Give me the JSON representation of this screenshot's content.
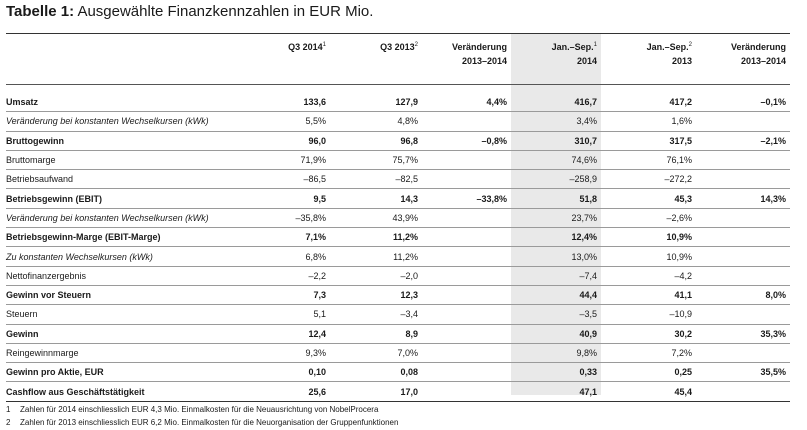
{
  "title": {
    "bold": "Tabelle 1:",
    "rest": "Ausgewählte Finanzkennzahlen in EUR Mio."
  },
  "headers": [
    {
      "line1": "",
      "line2": "",
      "sup": ""
    },
    {
      "line1": "Q3 2014",
      "line2": "",
      "sup": "1"
    },
    {
      "line1": "Q3 2013",
      "line2": "",
      "sup": "2"
    },
    {
      "line1": "Veränderung",
      "line2": "2013–2014",
      "sup": ""
    },
    {
      "line1": "Jan.–Sep.",
      "line2": "2014",
      "sup": "1"
    },
    {
      "line1": "Jan.–Sep.",
      "line2": "2013",
      "sup": "2"
    },
    {
      "line1": "Veränderung",
      "line2": "2013–2014",
      "sup": ""
    }
  ],
  "rows": [
    {
      "style": "bold",
      "cells": [
        "Umsatz",
        "133,6",
        "127,9",
        "4,4%",
        "416,7",
        "417,2",
        "–0,1%"
      ]
    },
    {
      "style": "italic",
      "cells": [
        "Veränderung bei konstanten Wechselkursen (kWk)",
        "5,5%",
        "4,8%",
        "",
        "3,4%",
        "1,6%",
        ""
      ]
    },
    {
      "style": "bold",
      "cells": [
        "Bruttogewinn",
        "96,0",
        "96,8",
        "–0,8%",
        "310,7",
        "317,5",
        "–2,1%"
      ]
    },
    {
      "style": "normal",
      "cells": [
        "Bruttomarge",
        "71,9%",
        "75,7%",
        "",
        "74,6%",
        "76,1%",
        ""
      ]
    },
    {
      "style": "normal",
      "cells": [
        "Betriebsaufwand",
        "–86,5",
        "–82,5",
        "",
        "–258,9",
        "–272,2",
        ""
      ]
    },
    {
      "style": "bold",
      "cells": [
        "Betriebsgewinn (EBIT)",
        "9,5",
        "14,3",
        "–33,8%",
        "51,8",
        "45,3",
        "14,3%"
      ]
    },
    {
      "style": "italic",
      "cells": [
        "Veränderung bei konstanten Wechselkursen (kWk)",
        "–35,8%",
        "43,9%",
        "",
        "23,7%",
        "–2,6%",
        ""
      ]
    },
    {
      "style": "bold",
      "cells": [
        "Betriebsgewinn-Marge (EBIT-Marge)",
        "7,1%",
        "11,2%",
        "",
        "12,4%",
        "10,9%",
        ""
      ]
    },
    {
      "style": "italic",
      "cells": [
        "Zu konstanten Wechselkursen (kWk)",
        "6,8%",
        "11,2%",
        "",
        "13,0%",
        "10,9%",
        ""
      ]
    },
    {
      "style": "normal",
      "cells": [
        "Nettofinanzergebnis",
        "–2,2",
        "–2,0",
        "",
        "–7,4",
        "–4,2",
        ""
      ]
    },
    {
      "style": "bold",
      "cells": [
        "Gewinn vor Steuern",
        "7,3",
        "12,3",
        "",
        "44,4",
        "41,1",
        "8,0%"
      ]
    },
    {
      "style": "normal",
      "cells": [
        "Steuern",
        "5,1",
        "–3,4",
        "",
        "–3,5",
        "–10,9",
        ""
      ]
    },
    {
      "style": "bold",
      "cells": [
        "Gewinn",
        "12,4",
        "8,9",
        "",
        "40,9",
        "30,2",
        "35,3%"
      ]
    },
    {
      "style": "normal",
      "cells": [
        "Reingewinnmarge",
        "9,3%",
        "7,0%",
        "",
        "9,8%",
        "7,2%",
        ""
      ]
    },
    {
      "style": "bold",
      "cells": [
        "Gewinn pro Aktie, EUR",
        "0,10",
        "0,08",
        "",
        "0,33",
        "0,25",
        "35,5%"
      ]
    },
    {
      "style": "bold",
      "cells": [
        "Cashflow aus Geschäftstätigkeit",
        "25,6",
        "17,0",
        "",
        "47,1",
        "45,4",
        ""
      ]
    }
  ],
  "footnotes": [
    {
      "num": "1",
      "text": "Zahlen für 2014 einschliesslich EUR 4,3 Mio. Einmalkosten für die Neuausrichtung von NobelProcera"
    },
    {
      "num": "2",
      "text": "Zahlen für 2013 einschliesslich EUR 6,2 Mio. Einmalkosten für die Neuorganisation der Gruppenfunktionen"
    }
  ]
}
